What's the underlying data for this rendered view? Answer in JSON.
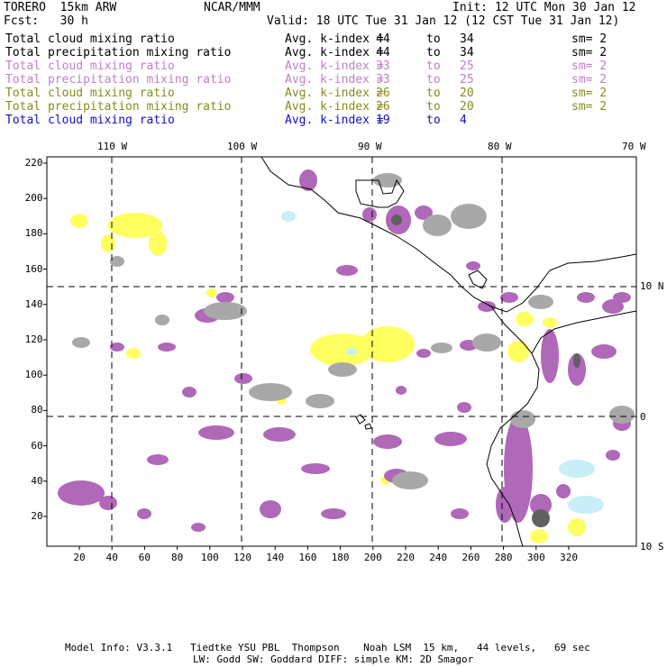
{
  "header": {
    "model": "TORERO  15km ARW",
    "org": "NCAR/MMM",
    "init": "Init: 12 UTC Mon 30 Jan 12",
    "fcst": "Fcst:   30 h",
    "valid": "Valid: 18 UTC Tue 31 Jan 12 (12 CST Tue 31 Jan 12)"
  },
  "legend": [
    {
      "name": "Total cloud mixing ratio",
      "k": "Avg. k-index =",
      "a": "44",
      "to": "to",
      "b": "34",
      "sm": "sm= 2",
      "color": "#000000"
    },
    {
      "name": "Total precipitation mixing ratio",
      "k": "Avg. k-index =",
      "a": "44",
      "to": "to",
      "b": "34",
      "sm": "sm= 2",
      "color": "#000000"
    },
    {
      "name": "Total cloud mixing ratio",
      "k": "Avg. k-index =",
      "a": "33",
      "to": "to",
      "b": "25",
      "sm": "sm= 2",
      "color": "#c080c8"
    },
    {
      "name": "Total precipitation mixing ratio",
      "k": "Avg. k-index =",
      "a": "33",
      "to": "to",
      "b": "25",
      "sm": "sm= 2",
      "color": "#c080c8"
    },
    {
      "name": "Total cloud mixing ratio",
      "k": "Avg. k-index =",
      "a": "26",
      "to": "to",
      "b": "20",
      "sm": "sm= 2",
      "color": "#8a8a20"
    },
    {
      "name": "Total precipitation mixing ratio",
      "k": "Avg. k-index =",
      "a": "26",
      "to": "to",
      "b": "20",
      "sm": "sm= 2",
      "color": "#8a8a20"
    },
    {
      "name": "Total cloud mixing ratio",
      "k": "Avg. k-index =",
      "a": "19",
      "to": "to",
      "b": "4",
      "sm": "",
      "color": "#1010c8"
    }
  ],
  "map": {
    "lon_labels": [
      "110 W",
      "100 W",
      "90 W",
      "80 W",
      "70 W"
    ],
    "lat_labels": [
      "10 N",
      "0",
      "10 S"
    ],
    "x_ticks": [
      "20",
      "40",
      "60",
      "80",
      "100",
      "120",
      "140",
      "160",
      "180",
      "200",
      "220",
      "240",
      "260",
      "280",
      "300",
      "320"
    ],
    "y_ticks": [
      "220",
      "200",
      "180",
      "160",
      "140",
      "120",
      "100",
      "80",
      "60",
      "40",
      "20"
    ],
    "colors": {
      "gray": "#a8a8a8",
      "purple": "#b068b8",
      "yellow": "#ffff60",
      "lightblue": "#c8eef8",
      "dark": "#606060"
    }
  },
  "footer": {
    "line1": "Model Info: V3.3.1   Tiedtke YSU PBL  Thompson    Noah LSM  15 km,   44 levels,   69 sec",
    "line2": "LW: Godd SW: Goddard DIFF: simple KM: 2D Smagor"
  }
}
